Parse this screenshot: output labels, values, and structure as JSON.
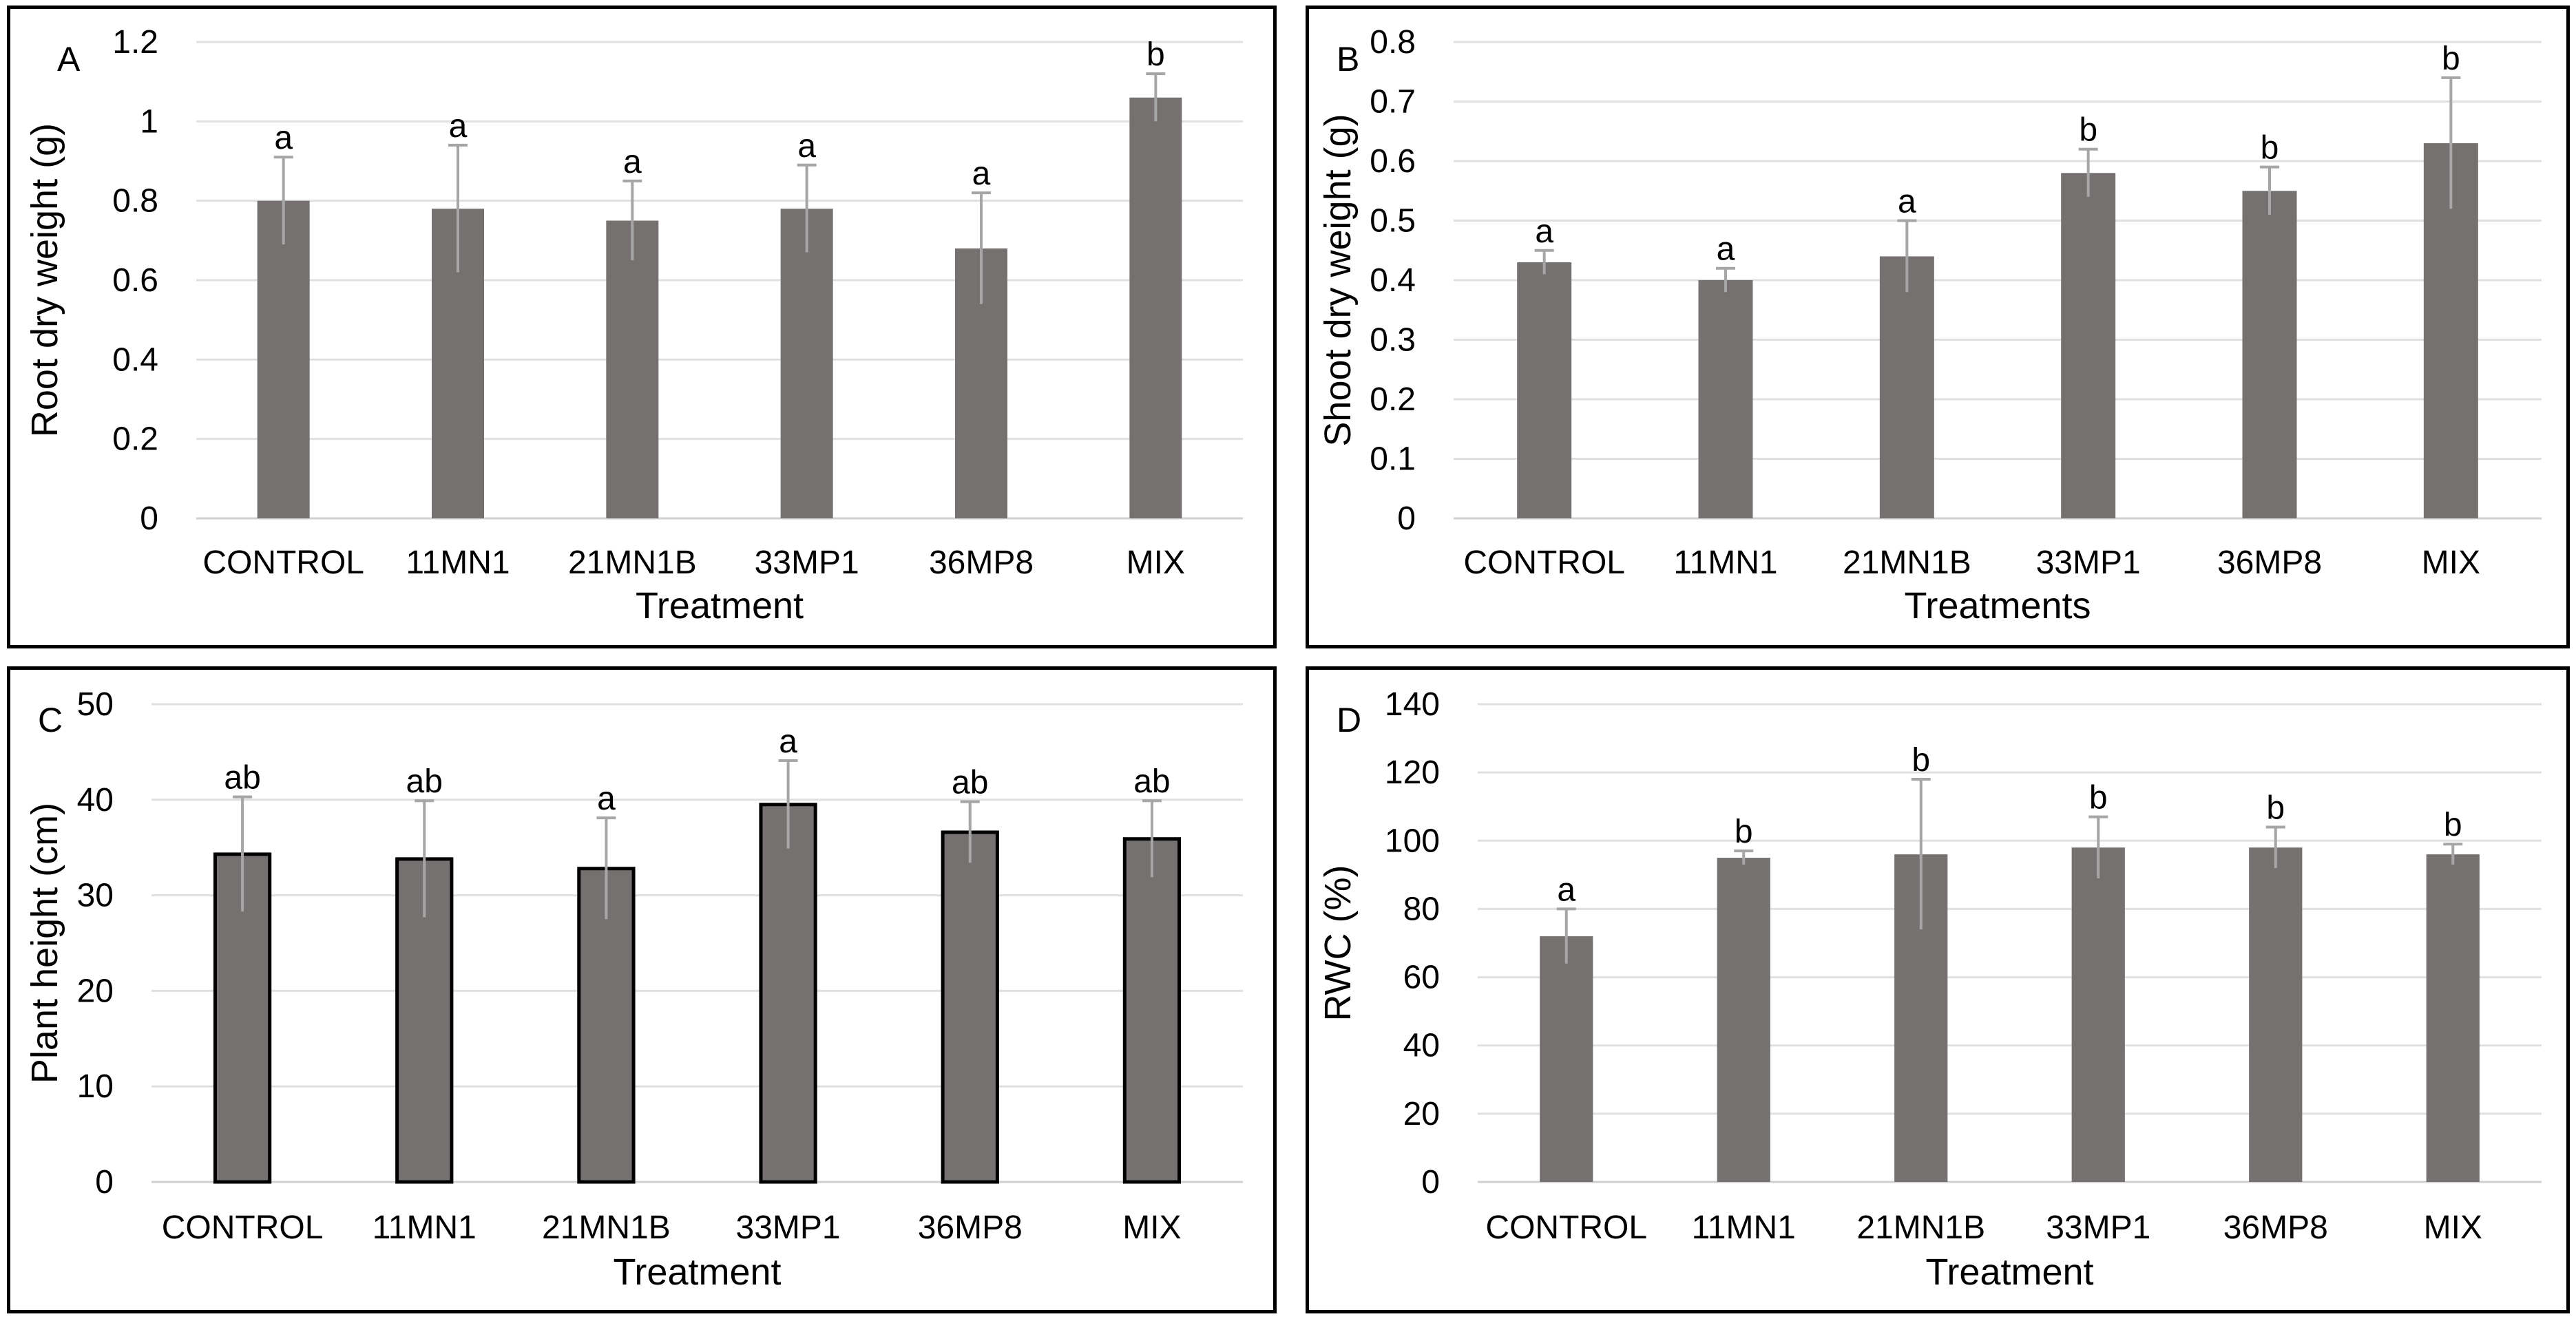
{
  "chart_data": [
    {
      "id": "A",
      "type": "bar",
      "panel_label": "A",
      "ylabel": "Root dry weight (g)",
      "xlabel": "Treatment",
      "categories": [
        "CONTROL",
        "11MN1",
        "21MN1B",
        "33MP1",
        "36MP8",
        "MIX"
      ],
      "values": [
        0.8,
        0.78,
        0.75,
        0.78,
        0.68,
        1.06
      ],
      "errors": [
        0.11,
        0.16,
        0.1,
        0.11,
        0.14,
        0.06
      ],
      "significance": [
        "a",
        "a",
        "a",
        "a",
        "a",
        "b"
      ],
      "ylim": [
        0,
        1.2
      ],
      "yticks": [
        "0",
        "0.2",
        "0.4",
        "0.6",
        "0.8",
        "1",
        "1.2"
      ],
      "bar_color": "#767171",
      "bar_outline": false,
      "grid": true
    },
    {
      "id": "B",
      "type": "bar",
      "panel_label": "B",
      "ylabel": "Shoot dry weight (g)",
      "xlabel": "Treatments",
      "categories": [
        "CONTROL",
        "11MN1",
        "21MN1B",
        "33MP1",
        "36MP8",
        "MIX"
      ],
      "values": [
        0.43,
        0.4,
        0.44,
        0.58,
        0.55,
        0.63
      ],
      "errors": [
        0.02,
        0.02,
        0.06,
        0.04,
        0.04,
        0.11
      ],
      "significance": [
        "a",
        "a",
        "a",
        "b",
        "b",
        "b"
      ],
      "ylim": [
        0,
        0.8
      ],
      "yticks": [
        "0",
        "0.1",
        "0.2",
        "0.3",
        "0.4",
        "0.5",
        "0.6",
        "0.7",
        "0.8"
      ],
      "bar_color": "#767171",
      "bar_outline": false,
      "grid": true
    },
    {
      "id": "C",
      "type": "bar",
      "panel_label": "C",
      "ylabel": "Plant height (cm)",
      "xlabel": "Treatment",
      "categories": [
        "CONTROL",
        "11MN1",
        "21MN1B",
        "33MP1",
        "36MP8",
        "MIX"
      ],
      "values": [
        34.3,
        33.8,
        32.8,
        39.5,
        36.6,
        35.9
      ],
      "errors": [
        6.0,
        6.1,
        5.3,
        4.6,
        3.2,
        4.0
      ],
      "significance": [
        "ab",
        "ab",
        "a",
        "a",
        "ab",
        "ab"
      ],
      "ylim": [
        0,
        50
      ],
      "yticks": [
        "0",
        "10",
        "20",
        "30",
        "40",
        "50"
      ],
      "bar_color": "#767171",
      "bar_outline": true,
      "grid": true
    },
    {
      "id": "D",
      "type": "bar",
      "panel_label": "D",
      "ylabel": "RWC (%)",
      "xlabel": "Treatment",
      "categories": [
        "CONTROL",
        "11MN1",
        "21MN1B",
        "33MP1",
        "36MP8",
        "MIX"
      ],
      "values": [
        72,
        95,
        96,
        98,
        98,
        96
      ],
      "errors": [
        8,
        2,
        22,
        9,
        6,
        3
      ],
      "significance": [
        "a",
        "b",
        "b",
        "b",
        "b",
        "b"
      ],
      "ylim": [
        0,
        140
      ],
      "yticks": [
        "0",
        "20",
        "40",
        "60",
        "80",
        "100",
        "120",
        "140"
      ],
      "bar_color": "#767171",
      "bar_outline": false,
      "grid": true
    }
  ]
}
